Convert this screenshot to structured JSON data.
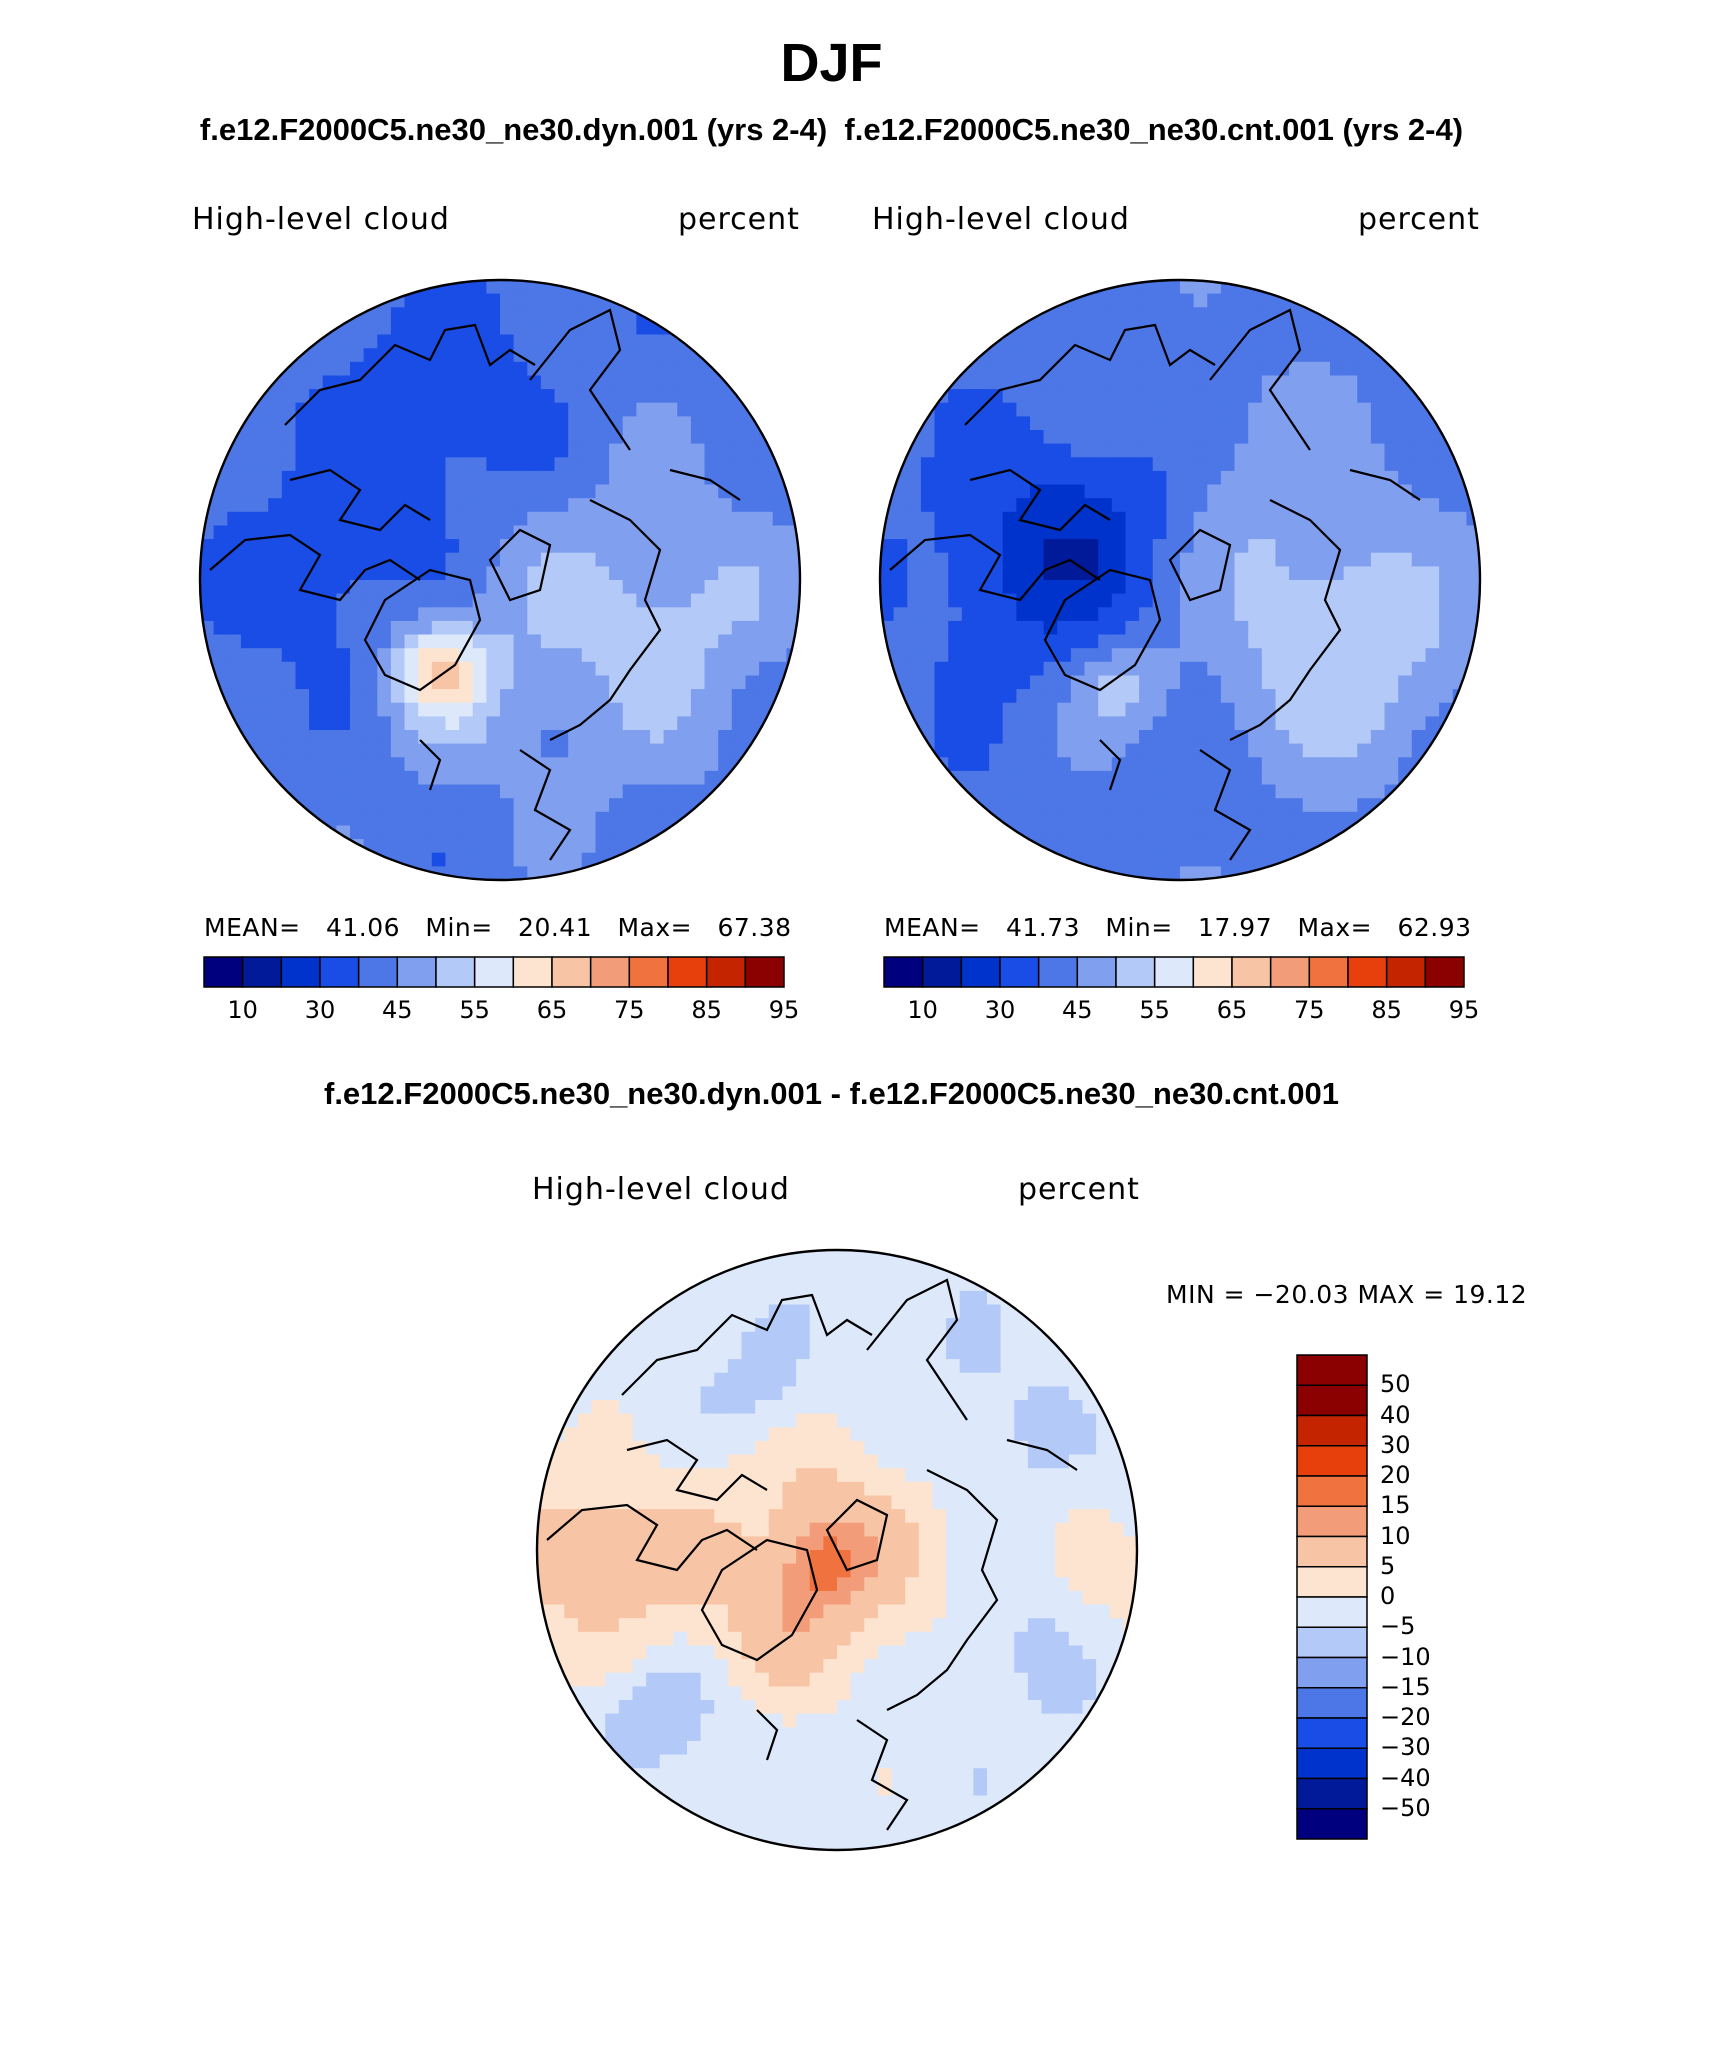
{
  "title": "DJF",
  "subtitle_left": "f.e12.F2000C5.ne30_ne30.dyn.001 (yrs 2-4)",
  "subtitle_right": "f.e12.F2000C5.ne30_ne30.cnt.001 (yrs 2-4)",
  "diff_title": "f.e12.F2000C5.ne30_ne30.dyn.001 - f.e12.F2000C5.ne30_ne30.cnt.001",
  "colors": {
    "abs_fill": [
      "#00007f",
      "#001a99",
      "#0033cc",
      "#1a4de6",
      "#4d77e6",
      "#809fee",
      "#b3c9f7",
      "#dde9fb",
      "#fde4d0",
      "#f8c4a6",
      "#f39c7a",
      "#f0723f",
      "#e8400d",
      "#c42400",
      "#8b0000"
    ],
    "diff_fill": [
      "#00007f",
      "#001a99",
      "#0033cc",
      "#1a4de6",
      "#4d77e6",
      "#809fee",
      "#b3c9f7",
      "#dde9fb",
      "#fde4d0",
      "#f8c4a6",
      "#f39c7a",
      "#f0723f",
      "#e8400d",
      "#c42400",
      "#8b0000"
    ]
  },
  "chart_data": [
    {
      "type": "heatmap",
      "title": "High-level cloud",
      "units": "percent",
      "stats": {
        "mean_label": "MEAN=",
        "mean": "41.06",
        "min_label": "Min=",
        "min": "20.41",
        "max_label": "Max=",
        "max": "67.38"
      },
      "levels": [
        "10",
        "30",
        "45",
        "55",
        "65",
        "75",
        "85",
        "95"
      ],
      "dominant_range": [
        30,
        55
      ],
      "notable_feature": "Warmer shades (60-67) over Greenland"
    },
    {
      "type": "heatmap",
      "title": "High-level cloud",
      "units": "percent",
      "stats": {
        "mean_label": "MEAN=",
        "mean": "41.73",
        "min_label": "Min=",
        "min": "17.97",
        "max_label": "Max=",
        "max": "62.93"
      },
      "levels": [
        "10",
        "30",
        "45",
        "55",
        "65",
        "75",
        "85",
        "95"
      ],
      "dominant_range": [
        20,
        60
      ]
    },
    {
      "type": "heatmap",
      "title": "High-level cloud",
      "units": "percent",
      "stats": {
        "text": "MIN = −20.03 MAX =   19.12"
      },
      "levels": [
        "50",
        "40",
        "30",
        "20",
        "15",
        "10",
        "5",
        "0",
        "−5",
        "−10",
        "−15",
        "−20",
        "−30",
        "−40",
        "−50"
      ],
      "dominant_range": [
        -20,
        20
      ]
    }
  ]
}
